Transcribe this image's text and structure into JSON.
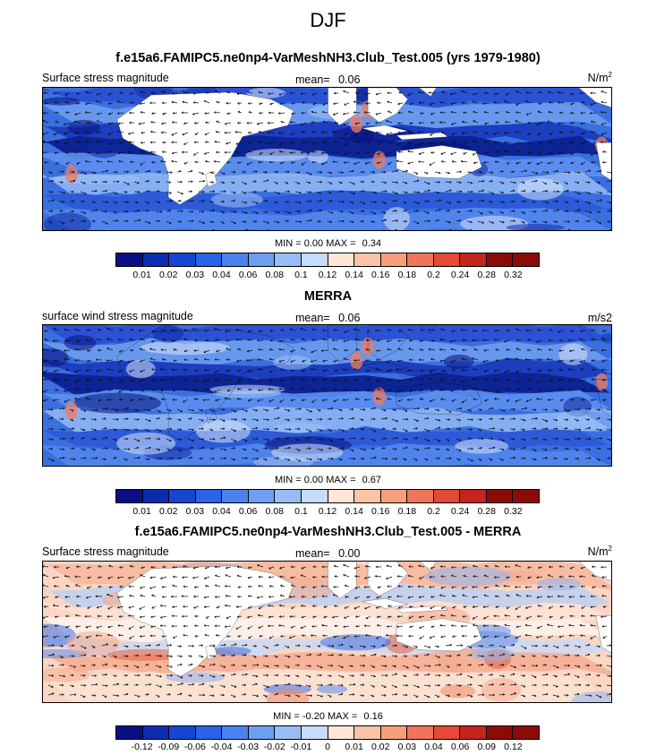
{
  "figure": {
    "season": "DJF"
  },
  "palette_colors": [
    "#0a0f85",
    "#0c2cb0",
    "#1446d1",
    "#2a62e8",
    "#4a82f0",
    "#6f9ff0",
    "#98bdf5",
    "#c5dcfa",
    "#ffe6d8",
    "#fcc4a6",
    "#f79e7c",
    "#f0745a",
    "#e44a35",
    "#c4251d",
    "#8c0b08"
  ],
  "continent_color": "#ffffff",
  "icons": {
    "vector": "arrow-icon"
  },
  "panels": [
    {
      "id": "model",
      "title": "f.e15a6.FAMIPC5.ne0np4-VarMeshNH3.Club_Test.005 (yrs 1979-1980)",
      "left_label": "Surface stress magnitude",
      "mean_label": "mean=",
      "mean_value": "0.06",
      "units_base": "N/m",
      "units_exp": "2",
      "min_label": "MIN =",
      "min_value": "0.00",
      "max_label": "MAX =",
      "max_value": "0.34",
      "colorbar_ticks": [
        "0.01",
        "0.02",
        "0.03",
        "0.04",
        "0.06",
        "0.08",
        "0.1",
        "0.12",
        "0.14",
        "0.16",
        "0.18",
        "0.2",
        "0.24",
        "0.28",
        "0.32"
      ]
    },
    {
      "id": "obs",
      "title": "MERRA",
      "left_label": "surface wind stress magnitude",
      "mean_label": "mean=",
      "mean_value": "0.06",
      "units_base": "m/s2",
      "units_exp": "",
      "min_label": "MIN =",
      "min_value": "0.00",
      "max_label": "MAX =",
      "max_value": "0.67",
      "colorbar_ticks": [
        "0.01",
        "0.02",
        "0.03",
        "0.04",
        "0.06",
        "0.08",
        "0.1",
        "0.12",
        "0.14",
        "0.16",
        "0.18",
        "0.2",
        "0.24",
        "0.28",
        "0.32"
      ]
    },
    {
      "id": "diff",
      "title": "f.e15a6.FAMIPC5.ne0np4-VarMeshNH3.Club_Test.005 - MERRA",
      "left_label": "Surface stress magnitude",
      "mean_label": "mean=",
      "mean_value": "0.00",
      "units_base": "N/m",
      "units_exp": "2",
      "min_label": "MIN =",
      "min_value": "-0.20",
      "max_label": "MAX =",
      "max_value": "0.16",
      "colorbar_ticks": [
        "-0.12",
        "-0.09",
        "-0.06",
        "-0.04",
        "-0.03",
        "-0.02",
        "-0.01",
        "0",
        "0.01",
        "0.02",
        "0.03",
        "0.04",
        "0.06",
        "0.09",
        "0.12"
      ]
    }
  ],
  "chart_data": [
    {
      "type": "heatmap",
      "title": "f.e15a6.FAMIPC5.ne0np4-VarMeshNH3.Club_Test.005 (yrs 1979-1980)",
      "variable": "Surface stress magnitude",
      "mean": 0.06,
      "min": 0.0,
      "max": 0.34,
      "contour_levels": [
        0.01,
        0.02,
        0.03,
        0.04,
        0.06,
        0.08,
        0.1,
        0.12,
        0.14,
        0.16,
        0.18,
        0.2,
        0.24,
        0.28,
        0.32
      ],
      "legend": "bottom"
    },
    {
      "type": "heatmap",
      "title": "MERRA",
      "variable": "surface wind stress magnitude",
      "mean": 0.06,
      "min": 0.0,
      "max": 0.67,
      "contour_levels": [
        0.01,
        0.02,
        0.03,
        0.04,
        0.06,
        0.08,
        0.1,
        0.12,
        0.14,
        0.16,
        0.18,
        0.2,
        0.24,
        0.28,
        0.32
      ],
      "legend": "bottom"
    },
    {
      "type": "heatmap",
      "title": "f.e15a6.FAMIPC5.ne0np4-VarMeshNH3.Club_Test.005 - MERRA",
      "variable": "Surface stress magnitude",
      "mean": 0.0,
      "min": -0.2,
      "max": 0.16,
      "contour_levels": [
        -0.12,
        -0.09,
        -0.06,
        -0.04,
        -0.03,
        -0.02,
        -0.01,
        0,
        0.01,
        0.02,
        0.03,
        0.04,
        0.06,
        0.09,
        0.12
      ],
      "legend": "bottom"
    }
  ]
}
